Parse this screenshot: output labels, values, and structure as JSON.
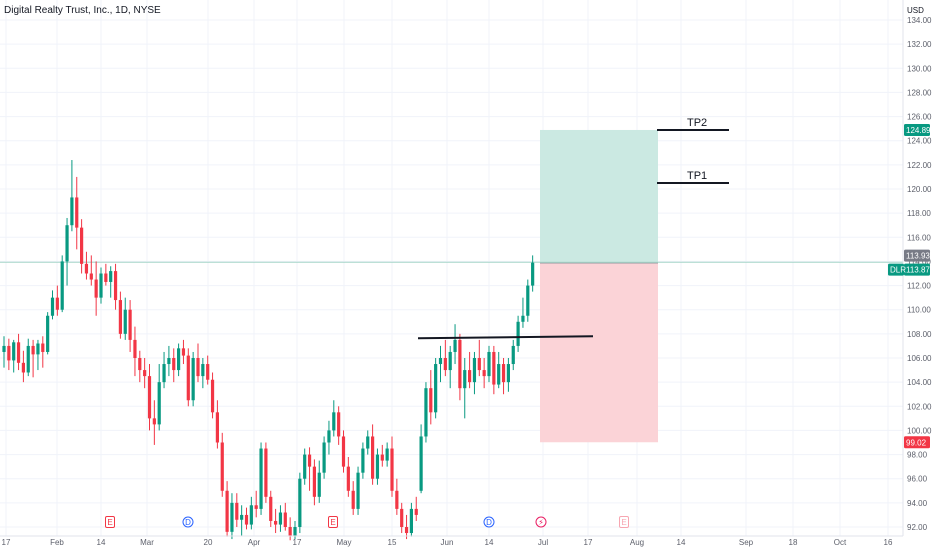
{
  "header": {
    "title": "Digital Realty Trust, Inc., 1D, NYSE",
    "currency": "USD"
  },
  "chart_data": {
    "type": "candlestick",
    "ticker": "DLR",
    "ylim": [
      91.5,
      135
    ],
    "y_ticks": [
      "134.00",
      "132.00",
      "130.00",
      "128.00",
      "126.00",
      "124.00",
      "122.00",
      "120.00",
      "118.00",
      "116.00",
      "114.00",
      "112.00",
      "110.00",
      "108.00",
      "106.00",
      "104.00",
      "102.00",
      "100.00",
      "98.00",
      "96.00",
      "94.00",
      "92.00"
    ],
    "x_ticks": [
      "17",
      "Feb",
      "14",
      "Mar",
      "20",
      "Apr",
      "17",
      "May",
      "15",
      "Jun",
      "14",
      "Jul",
      "17",
      "Aug",
      "14",
      "Sep",
      "18",
      "Oct",
      "16"
    ],
    "candles": [
      {
        "o": 106.5,
        "h": 107.8,
        "l": 105.2,
        "c": 107.0
      },
      {
        "o": 107.0,
        "h": 107.6,
        "l": 105.0,
        "c": 105.8
      },
      {
        "o": 105.8,
        "h": 107.5,
        "l": 104.8,
        "c": 107.3
      },
      {
        "o": 107.3,
        "h": 108.0,
        "l": 105.0,
        "c": 105.6
      },
      {
        "o": 105.6,
        "h": 106.6,
        "l": 104.0,
        "c": 104.8
      },
      {
        "o": 104.8,
        "h": 107.6,
        "l": 104.5,
        "c": 107.0
      },
      {
        "o": 107.0,
        "h": 107.5,
        "l": 104.4,
        "c": 106.3
      },
      {
        "o": 106.3,
        "h": 107.5,
        "l": 105.0,
        "c": 107.2
      },
      {
        "o": 107.2,
        "h": 107.8,
        "l": 105.2,
        "c": 106.5
      },
      {
        "o": 106.5,
        "h": 109.8,
        "l": 106.3,
        "c": 109.5
      },
      {
        "o": 109.5,
        "h": 111.6,
        "l": 109.2,
        "c": 111.0
      },
      {
        "o": 111.0,
        "h": 112.0,
        "l": 109.5,
        "c": 110.0
      },
      {
        "o": 110.0,
        "h": 114.5,
        "l": 109.8,
        "c": 114.0
      },
      {
        "o": 114.0,
        "h": 117.6,
        "l": 112.0,
        "c": 117.0
      },
      {
        "o": 117.0,
        "h": 122.4,
        "l": 116.5,
        "c": 119.3
      },
      {
        "o": 119.3,
        "h": 121.0,
        "l": 115.0,
        "c": 116.8
      },
      {
        "o": 116.8,
        "h": 117.5,
        "l": 113.0,
        "c": 113.8
      },
      {
        "o": 113.8,
        "h": 114.8,
        "l": 112.5,
        "c": 113.0
      },
      {
        "o": 113.0,
        "h": 114.5,
        "l": 112.0,
        "c": 112.5
      },
      {
        "o": 112.5,
        "h": 114.0,
        "l": 109.5,
        "c": 111.0
      },
      {
        "o": 111.0,
        "h": 113.5,
        "l": 110.5,
        "c": 113.0
      },
      {
        "o": 113.0,
        "h": 113.8,
        "l": 112.0,
        "c": 112.3
      },
      {
        "o": 112.3,
        "h": 113.6,
        "l": 111.0,
        "c": 113.2
      },
      {
        "o": 113.2,
        "h": 113.8,
        "l": 110.0,
        "c": 110.8
      },
      {
        "o": 110.8,
        "h": 111.5,
        "l": 107.6,
        "c": 108.0
      },
      {
        "o": 108.0,
        "h": 111.0,
        "l": 107.5,
        "c": 110.0
      },
      {
        "o": 110.0,
        "h": 110.8,
        "l": 106.5,
        "c": 107.5
      },
      {
        "o": 107.5,
        "h": 108.6,
        "l": 104.5,
        "c": 106.0
      },
      {
        "o": 106.0,
        "h": 106.6,
        "l": 104.0,
        "c": 105.0
      },
      {
        "o": 105.0,
        "h": 106.0,
        "l": 103.5,
        "c": 104.5
      },
      {
        "o": 104.5,
        "h": 105.5,
        "l": 100.0,
        "c": 101.0
      },
      {
        "o": 101.0,
        "h": 102.5,
        "l": 98.8,
        "c": 100.5
      },
      {
        "o": 100.5,
        "h": 105.5,
        "l": 100.0,
        "c": 104.0
      },
      {
        "o": 104.0,
        "h": 106.5,
        "l": 103.5,
        "c": 105.5
      },
      {
        "o": 105.5,
        "h": 107.0,
        "l": 104.5,
        "c": 106.0
      },
      {
        "o": 106.0,
        "h": 106.8,
        "l": 104.0,
        "c": 105.0
      },
      {
        "o": 105.0,
        "h": 107.2,
        "l": 104.5,
        "c": 106.8
      },
      {
        "o": 106.8,
        "h": 107.5,
        "l": 105.5,
        "c": 106.2
      },
      {
        "o": 106.2,
        "h": 106.8,
        "l": 102.0,
        "c": 102.5
      },
      {
        "o": 102.5,
        "h": 106.5,
        "l": 102.0,
        "c": 106.0
      },
      {
        "o": 106.0,
        "h": 107.2,
        "l": 104.0,
        "c": 104.5
      },
      {
        "o": 104.5,
        "h": 106.0,
        "l": 103.5,
        "c": 105.5
      },
      {
        "o": 105.5,
        "h": 106.2,
        "l": 103.8,
        "c": 104.2
      },
      {
        "o": 104.2,
        "h": 104.8,
        "l": 101.0,
        "c": 101.5
      },
      {
        "o": 101.5,
        "h": 102.5,
        "l": 98.5,
        "c": 99.0
      },
      {
        "o": 99.0,
        "h": 99.8,
        "l": 94.5,
        "c": 95.0
      },
      {
        "o": 95.0,
        "h": 95.8,
        "l": 91.2,
        "c": 91.6
      },
      {
        "o": 91.6,
        "h": 94.8,
        "l": 91.0,
        "c": 94.0
      },
      {
        "o": 94.0,
        "h": 94.8,
        "l": 92.0,
        "c": 92.6
      },
      {
        "o": 92.6,
        "h": 93.8,
        "l": 91.3,
        "c": 93.0
      },
      {
        "o": 93.0,
        "h": 93.6,
        "l": 91.8,
        "c": 92.2
      },
      {
        "o": 92.2,
        "h": 94.5,
        "l": 91.8,
        "c": 93.8
      },
      {
        "o": 93.8,
        "h": 95.0,
        "l": 92.8,
        "c": 93.5
      },
      {
        "o": 93.5,
        "h": 99.0,
        "l": 93.0,
        "c": 98.5
      },
      {
        "o": 98.5,
        "h": 99.0,
        "l": 94.0,
        "c": 94.5
      },
      {
        "o": 94.5,
        "h": 95.0,
        "l": 92.0,
        "c": 92.5
      },
      {
        "o": 92.5,
        "h": 93.5,
        "l": 91.5,
        "c": 92.2
      },
      {
        "o": 92.2,
        "h": 93.8,
        "l": 91.6,
        "c": 93.2
      },
      {
        "o": 93.2,
        "h": 94.0,
        "l": 91.7,
        "c": 92.0
      },
      {
        "o": 92.0,
        "h": 92.8,
        "l": 90.9,
        "c": 91.3
      },
      {
        "o": 91.3,
        "h": 92.5,
        "l": 91.0,
        "c": 92.0
      },
      {
        "o": 92.0,
        "h": 96.5,
        "l": 91.5,
        "c": 96.0
      },
      {
        "o": 96.0,
        "h": 98.5,
        "l": 95.5,
        "c": 98.0
      },
      {
        "o": 98.0,
        "h": 98.6,
        "l": 95.0,
        "c": 97.0
      },
      {
        "o": 97.0,
        "h": 97.6,
        "l": 93.8,
        "c": 94.5
      },
      {
        "o": 94.5,
        "h": 97.5,
        "l": 94.0,
        "c": 96.5
      },
      {
        "o": 96.5,
        "h": 99.5,
        "l": 96.0,
        "c": 99.0
      },
      {
        "o": 99.0,
        "h": 100.8,
        "l": 98.0,
        "c": 100.0
      },
      {
        "o": 100.0,
        "h": 102.5,
        "l": 99.5,
        "c": 101.5
      },
      {
        "o": 101.5,
        "h": 102.0,
        "l": 98.8,
        "c": 99.5
      },
      {
        "o": 99.5,
        "h": 100.0,
        "l": 96.5,
        "c": 97.0
      },
      {
        "o": 97.0,
        "h": 97.8,
        "l": 94.5,
        "c": 95.0
      },
      {
        "o": 95.0,
        "h": 95.8,
        "l": 93.0,
        "c": 93.5
      },
      {
        "o": 93.5,
        "h": 97.0,
        "l": 93.0,
        "c": 96.5
      },
      {
        "o": 96.5,
        "h": 99.0,
        "l": 96.0,
        "c": 98.5
      },
      {
        "o": 98.5,
        "h": 100.0,
        "l": 98.0,
        "c": 99.5
      },
      {
        "o": 99.5,
        "h": 100.5,
        "l": 95.5,
        "c": 96.0
      },
      {
        "o": 96.0,
        "h": 98.5,
        "l": 95.5,
        "c": 98.0
      },
      {
        "o": 98.0,
        "h": 98.8,
        "l": 97.0,
        "c": 97.5
      },
      {
        "o": 97.5,
        "h": 99.0,
        "l": 97.0,
        "c": 98.5
      },
      {
        "o": 98.5,
        "h": 99.5,
        "l": 94.5,
        "c": 95.0
      },
      {
        "o": 95.0,
        "h": 96.0,
        "l": 93.0,
        "c": 93.5
      },
      {
        "o": 93.5,
        "h": 94.0,
        "l": 91.5,
        "c": 92.0
      },
      {
        "o": 92.0,
        "h": 93.0,
        "l": 91.0,
        "c": 91.5
      },
      {
        "o": 91.5,
        "h": 94.0,
        "l": 91.2,
        "c": 93.5
      },
      {
        "o": 93.5,
        "h": 94.5,
        "l": 92.5,
        "c": 93.0
      },
      {
        "o": 95.0,
        "h": 100.5,
        "l": 94.8,
        "c": 99.5
      },
      {
        "o": 99.5,
        "h": 104.0,
        "l": 99.0,
        "c": 103.5
      },
      {
        "o": 103.5,
        "h": 105.0,
        "l": 100.5,
        "c": 101.5
      },
      {
        "o": 101.5,
        "h": 106.0,
        "l": 101.0,
        "c": 105.5
      },
      {
        "o": 105.5,
        "h": 107.0,
        "l": 104.0,
        "c": 106.0
      },
      {
        "o": 106.0,
        "h": 107.5,
        "l": 104.5,
        "c": 105.0
      },
      {
        "o": 105.0,
        "h": 107.0,
        "l": 103.5,
        "c": 106.5
      },
      {
        "o": 106.5,
        "h": 108.8,
        "l": 105.5,
        "c": 107.5
      },
      {
        "o": 107.5,
        "h": 108.0,
        "l": 102.5,
        "c": 103.5
      },
      {
        "o": 103.5,
        "h": 106.0,
        "l": 101.0,
        "c": 105.0
      },
      {
        "o": 105.0,
        "h": 106.5,
        "l": 103.5,
        "c": 104.0
      },
      {
        "o": 104.0,
        "h": 106.5,
        "l": 103.0,
        "c": 106.0
      },
      {
        "o": 106.0,
        "h": 107.5,
        "l": 104.5,
        "c": 105.0
      },
      {
        "o": 105.0,
        "h": 106.0,
        "l": 103.5,
        "c": 104.5
      },
      {
        "o": 104.5,
        "h": 107.0,
        "l": 104.0,
        "c": 106.5
      },
      {
        "o": 106.5,
        "h": 107.0,
        "l": 103.0,
        "c": 103.8
      },
      {
        "o": 103.8,
        "h": 106.5,
        "l": 103.5,
        "c": 105.5
      },
      {
        "o": 105.5,
        "h": 106.0,
        "l": 103.0,
        "c": 104.0
      },
      {
        "o": 104.0,
        "h": 106.0,
        "l": 103.2,
        "c": 105.5
      },
      {
        "o": 105.5,
        "h": 107.5,
        "l": 105.0,
        "c": 107.0
      },
      {
        "o": 107.0,
        "h": 109.5,
        "l": 106.5,
        "c": 109.0
      },
      {
        "o": 109.0,
        "h": 111.0,
        "l": 108.5,
        "c": 109.5
      },
      {
        "o": 109.5,
        "h": 112.5,
        "l": 109.0,
        "c": 112.0
      },
      {
        "o": 112.0,
        "h": 114.5,
        "l": 111.5,
        "c": 113.9
      }
    ],
    "horizontal_line": 107.8,
    "last_price": 113.93,
    "price_labels": {
      "last": "113.93",
      "ticker_price": "113.87",
      "take_profit": "124.89",
      "stop": "99.02"
    },
    "position": {
      "entry": 113.87,
      "target": 124.89,
      "stop": 99.02
    },
    "annotations": [
      {
        "text": "TP2",
        "price": 124.89
      },
      {
        "text": "TP1",
        "price": 120.5
      }
    ],
    "event_markers": [
      {
        "symbol": "E",
        "kind": "earnings",
        "color": "#f23645"
      },
      {
        "symbol": "D",
        "kind": "dividend",
        "color": "#2962ff"
      },
      {
        "symbol": "E",
        "kind": "earnings",
        "color": "#f23645"
      },
      {
        "symbol": "D",
        "kind": "dividend",
        "color": "#2962ff"
      },
      {
        "symbol": "⚡",
        "kind": "split",
        "color": "#e91e63"
      },
      {
        "symbol": "E",
        "kind": "earnings-upcoming",
        "color": "#f7a6b1"
      }
    ],
    "colors": {
      "up": "#089981",
      "down": "#f23645",
      "profit_zone": "#cbe9e2",
      "loss_zone": "#fbd3d7",
      "profit_tag": "#089981",
      "loss_tag": "#f23645",
      "last_tag": "#787b86"
    }
  }
}
